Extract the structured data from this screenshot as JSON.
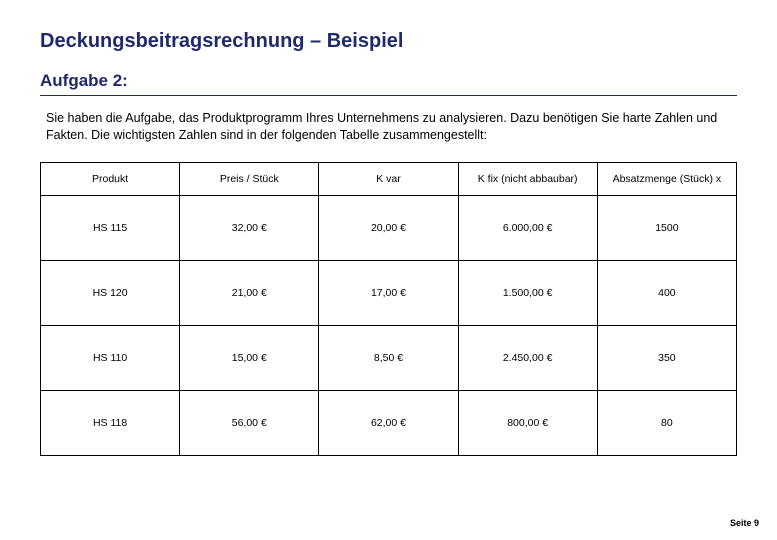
{
  "title": "Deckungsbeitragsrechnung – Beispiel",
  "subtitle": "Aufgabe 2:",
  "intro": "Sie haben die Aufgabe, das Produktprogramm Ihres Unternehmens zu analysieren. Dazu benötigen Sie harte Zahlen und Fakten. Die wichtigsten Zahlen sind in der folgenden Tabelle zusammengestellt:",
  "table": {
    "columns": [
      "Produkt",
      "Preis / Stück",
      "K var",
      "K fix (nicht abbaubar)",
      "Absatzmenge (Stück) x"
    ],
    "rows": [
      [
        "HS 115",
        "32,00 €",
        "20,00 €",
        "6.000,00 €",
        "1500"
      ],
      [
        "HS 120",
        "21,00 €",
        "17,00 €",
        "1.500,00 €",
        "400"
      ],
      [
        "HS 110",
        "15,00 €",
        "8,50 €",
        "2.450,00 €",
        "350"
      ],
      [
        "HS 118",
        "56,00 €",
        "62,00 €",
        "800,00 €",
        "80"
      ]
    ],
    "border_color": "#000000",
    "header_fontsize": 10.5,
    "cell_fontsize": 10.5,
    "background_color": "#ffffff"
  },
  "footer": "Seite 9",
  "colors": {
    "heading": "#1f2a6b",
    "text": "#000000",
    "background": "#ffffff"
  }
}
